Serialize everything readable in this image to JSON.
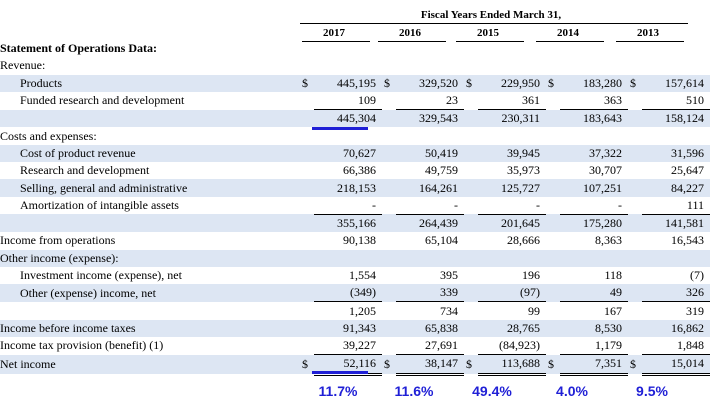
{
  "header": {
    "title": "Fiscal Years Ended March 31,",
    "years": [
      "2017",
      "2016",
      "2015",
      "2014",
      "2013"
    ]
  },
  "rows": [
    {
      "label": "Statement of Operations Data:",
      "style": "bold",
      "values": []
    },
    {
      "label": "Revenue:",
      "style": "plain",
      "values": []
    },
    {
      "label": "Products",
      "style": "ind",
      "shade": true,
      "dollar": true,
      "values": [
        "445,195",
        "329,520",
        "229,950",
        "183,280",
        "157,614"
      ]
    },
    {
      "label": "Funded research and development",
      "style": "ind",
      "values": [
        "109",
        "23",
        "361",
        "363",
        "510"
      ]
    },
    {
      "label": "",
      "style": "plain",
      "shade": true,
      "top": true,
      "values": [
        "445,304",
        "329,543",
        "230,311",
        "183,643",
        "158,124"
      ]
    },
    {
      "label": "Costs and expenses:",
      "style": "plain",
      "values": []
    },
    {
      "label": "Cost of product revenue",
      "style": "ind",
      "shade": true,
      "values": [
        "70,627",
        "50,419",
        "39,945",
        "37,322",
        "31,596"
      ]
    },
    {
      "label": "Research and development",
      "style": "ind",
      "values": [
        "66,386",
        "49,759",
        "35,973",
        "30,707",
        "25,647"
      ]
    },
    {
      "label": "Selling, general and administrative",
      "style": "ind",
      "shade": true,
      "values": [
        "218,153",
        "164,261",
        "125,727",
        "107,251",
        "84,227"
      ]
    },
    {
      "label": "Amortization of intangible assets",
      "style": "ind",
      "values": [
        "-",
        "-",
        "-",
        "-",
        "111"
      ]
    },
    {
      "label": "",
      "style": "plain",
      "shade": true,
      "top": true,
      "values": [
        "355,166",
        "264,439",
        "201,645",
        "175,280",
        "141,581"
      ]
    },
    {
      "label": "Income from operations",
      "style": "plain",
      "values": [
        "90,138",
        "65,104",
        "28,666",
        "8,363",
        "16,543"
      ]
    },
    {
      "label": "Other income (expense):",
      "style": "plain",
      "shade": true,
      "values": []
    },
    {
      "label": "Investment income (expense), net",
      "style": "ind",
      "values": [
        "1,554",
        "395",
        "196",
        "118",
        "(7)"
      ]
    },
    {
      "label": "Other (expense) income, net",
      "style": "ind",
      "shade": true,
      "values": [
        "(349)",
        "339",
        "(97)",
        "49",
        "326"
      ]
    },
    {
      "label": "",
      "style": "plain",
      "top": true,
      "values": [
        "1,205",
        "734",
        "99",
        "167",
        "319"
      ]
    },
    {
      "label": "Income before income taxes",
      "style": "plain",
      "shade": true,
      "values": [
        "91,343",
        "65,838",
        "28,765",
        "8,530",
        "16,862"
      ]
    },
    {
      "label": "Income tax provision (benefit) (1)",
      "style": "plain",
      "values": [
        "39,227",
        "27,691",
        "(84,923)",
        "1,179",
        "1,848"
      ]
    },
    {
      "label": "Net income",
      "style": "plain",
      "shade": true,
      "dollar": true,
      "top": true,
      "dbl": true,
      "values": [
        "52,116",
        "38,147",
        "113,688",
        "7,351",
        "15,014"
      ]
    }
  ],
  "currency_symbol": "$",
  "margins": [
    "11.7%",
    "11.6%",
    "49.4%",
    "4.0%",
    "9.5%"
  ],
  "colors": {
    "shade": "#dde6f3",
    "accent": "#1f1fd6"
  }
}
